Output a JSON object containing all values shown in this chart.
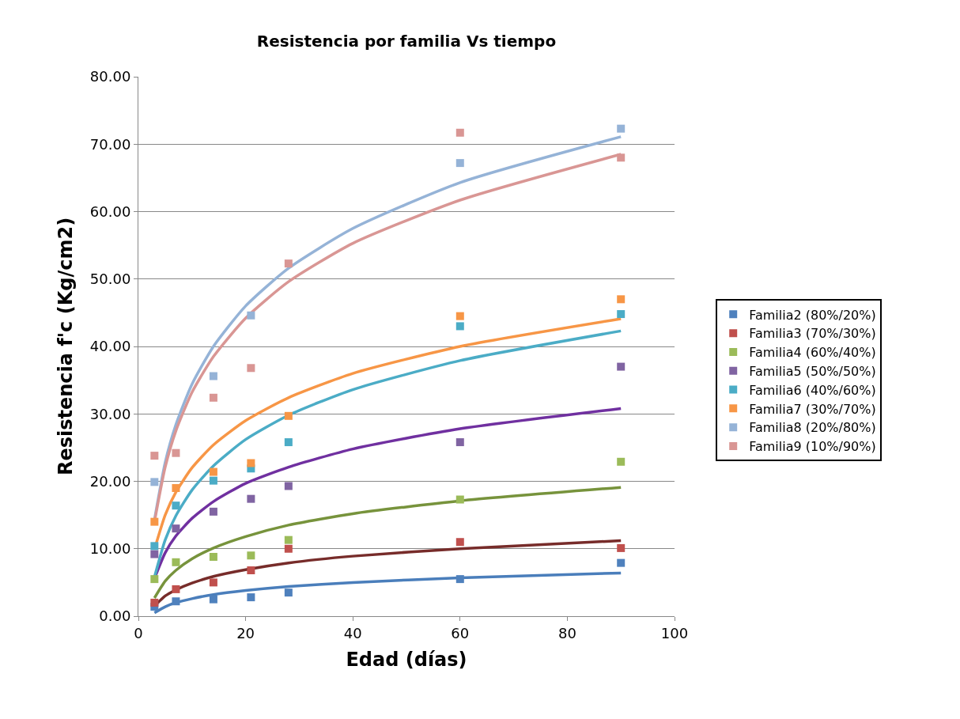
{
  "chart_data": {
    "type": "scatter",
    "title": "Resistencia por familia Vs tiempo",
    "xlabel": "Edad (días)",
    "ylabel": "Resistencia f'c (Kg/cm2)",
    "x": [
      3,
      7,
      14,
      21,
      28,
      60,
      90
    ],
    "xlim": [
      0,
      100
    ],
    "xticks": [
      0,
      20,
      40,
      60,
      80,
      100
    ],
    "ylim": [
      0,
      80
    ],
    "yticks": [
      {
        "value": 0,
        "label": "0.00"
      },
      {
        "value": 10,
        "label": "10.00"
      },
      {
        "value": 20,
        "label": "20.00"
      },
      {
        "value": 30,
        "label": "30.00"
      },
      {
        "value": 40,
        "label": "40.00"
      },
      {
        "value": 50,
        "label": "50.00"
      },
      {
        "value": 60,
        "label": "60.00"
      },
      {
        "value": 70,
        "label": "70.00"
      },
      {
        "value": 80,
        "label": "80.00"
      }
    ],
    "grid": "y",
    "legend": "right",
    "marker": "square",
    "series": [
      {
        "name": "Familia2 (80%/20%)",
        "color": "#4f81bd",
        "values": [
          1.4,
          2.2,
          2.5,
          2.8,
          3.5,
          5.5,
          7.9
        ]
      },
      {
        "name": "Familia3 (70%/30%)",
        "color": "#c0504d",
        "values": [
          2.0,
          4.0,
          5.0,
          6.8,
          10.0,
          11.0,
          10.1
        ]
      },
      {
        "name": "Familia4 (60%/40%)",
        "color": "#9bbb59",
        "values": [
          5.5,
          8.0,
          8.8,
          9.0,
          11.3,
          17.3,
          22.9
        ]
      },
      {
        "name": "Familia5 (50%/50%)",
        "color": "#8064a2",
        "values": [
          9.2,
          13.0,
          15.5,
          17.4,
          19.3,
          25.8,
          37.0
        ]
      },
      {
        "name": "Familia6 (40%/60%)",
        "color": "#4bacc6",
        "values": [
          10.4,
          16.4,
          20.1,
          21.9,
          25.8,
          43.0,
          44.8
        ]
      },
      {
        "name": "Familia7 (30%/70%)",
        "color": "#f79646",
        "values": [
          14.0,
          19.0,
          21.4,
          22.7,
          29.7,
          44.5,
          47.0
        ]
      },
      {
        "name": "Familia8 (20%/80%)",
        "color": "#95b3d7",
        "values": [
          19.9,
          null,
          35.6,
          44.6,
          null,
          67.2,
          72.3
        ]
      },
      {
        "name": "Familia9 (10%/90%)",
        "color": "#d99694",
        "values": [
          23.8,
          24.2,
          32.4,
          36.8,
          52.3,
          71.7,
          68.0
        ]
      },
      {
        "type": "line",
        "marker": "none",
        "color": "#4a7ebb",
        "x": [
          3,
          5,
          7,
          10,
          14,
          20,
          28,
          40,
          60,
          90
        ],
        "values": [
          0.5,
          1.4,
          2.0,
          2.6,
          3.2,
          3.8,
          4.4,
          5.0,
          5.7,
          6.4
        ]
      },
      {
        "type": "line",
        "marker": "none",
        "color": "#772c2a",
        "x": [
          3,
          5,
          7,
          10,
          14,
          20,
          28,
          40,
          60,
          90
        ],
        "values": [
          1.5,
          3.0,
          3.9,
          4.9,
          5.9,
          6.9,
          7.9,
          8.9,
          10.0,
          11.2
        ]
      },
      {
        "type": "line",
        "marker": "none",
        "color": "#77933c",
        "x": [
          3,
          5,
          7,
          10,
          14,
          20,
          28,
          40,
          60,
          90
        ],
        "values": [
          2.7,
          5.2,
          6.8,
          8.5,
          10.1,
          11.8,
          13.5,
          15.2,
          17.1,
          19.1
        ]
      },
      {
        "type": "line",
        "marker": "none",
        "color": "#7030a0",
        "x": [
          3,
          5,
          7,
          10,
          14,
          20,
          28,
          40,
          60,
          90
        ],
        "values": [
          5.6,
          9.4,
          11.9,
          14.5,
          17.0,
          19.7,
          22.1,
          24.8,
          27.8,
          30.8
        ]
      },
      {
        "type": "line",
        "marker": "none",
        "color": "#4bacc6",
        "x": [
          3,
          5,
          7,
          10,
          14,
          20,
          28,
          40,
          60,
          90
        ],
        "values": [
          5.8,
          11.3,
          14.9,
          18.7,
          22.3,
          26.2,
          29.8,
          33.6,
          37.9,
          42.3
        ]
      },
      {
        "type": "line",
        "marker": "none",
        "color": "#f79646",
        "x": [
          3,
          5,
          7,
          10,
          14,
          20,
          28,
          40,
          60,
          90
        ],
        "values": [
          9.9,
          15.0,
          18.4,
          22.0,
          25.4,
          29.0,
          32.4,
          36.0,
          40.0,
          44.1
        ]
      },
      {
        "type": "line",
        "marker": "none",
        "color": "#95b3d7",
        "x": [
          3,
          5,
          7,
          10,
          14,
          20,
          28,
          40,
          60,
          90
        ],
        "values": [
          14.3,
          22.8,
          28.4,
          34.4,
          40.0,
          46.0,
          51.6,
          57.5,
          64.3,
          71.1
        ]
      },
      {
        "type": "line",
        "marker": "none",
        "color": "#d99694",
        "x": [
          3,
          5,
          7,
          10,
          14,
          20,
          28,
          40,
          60,
          90
        ],
        "values": [
          14.0,
          22.1,
          27.5,
          33.2,
          38.5,
          44.2,
          49.6,
          55.3,
          61.7,
          68.5
        ]
      }
    ]
  }
}
